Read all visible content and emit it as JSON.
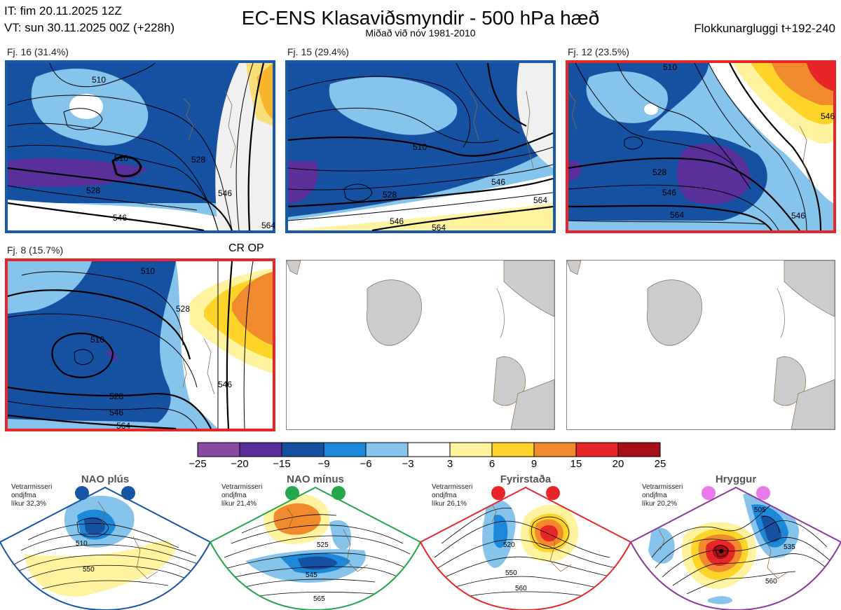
{
  "header": {
    "it": "IT: fim 20.11.2025 12Z",
    "vt": "VT: sun 30.11.2025 00Z  (+228h)",
    "title": "EC-ENS Klasaviðsmyndir - 500 hPa hæð",
    "subtitle": "Miðað við nóv 1981-2010",
    "window": "Flokkunargluggi t+192-240"
  },
  "clusters": [
    {
      "label": "Fj. 16 (31.4%)",
      "frame_color": "#1a5aa8",
      "contours": [
        "510",
        "510",
        "528",
        "528",
        "546",
        "546",
        "564"
      ]
    },
    {
      "label": "Fj. 15 (29.4%)",
      "frame_color": "#1a5aa8",
      "contours": [
        "510",
        "528",
        "546",
        "564",
        "546",
        "564"
      ]
    },
    {
      "label": "Fj. 12 (23.5%)",
      "frame_color": "#e8262a",
      "contours": [
        "510",
        "528",
        "546",
        "564",
        "546",
        "546"
      ]
    },
    {
      "label": "Fj. 8 (15.7%)",
      "frame_color": "#e8262a",
      "contours": [
        "510",
        "510",
        "528",
        "528",
        "546",
        "564",
        "546"
      ]
    }
  ],
  "cr_op": "CR OP",
  "colorbar": {
    "ticks": [
      "−25",
      "−20",
      "−15",
      "−9",
      "−6",
      "−3",
      "3",
      "6",
      "9",
      "15",
      "20",
      "25"
    ],
    "colors": [
      "#8a4aa3",
      "#5a2f9a",
      "#1650a0",
      "#1e88d8",
      "#86c4ec",
      "#ffffff",
      "#fff3a0",
      "#ffd42a",
      "#f08a2c",
      "#e8262a",
      "#a50f15"
    ]
  },
  "regimes": [
    {
      "name": "NAO plús",
      "info1": "Vetrarmisseri",
      "info2": "ondjfma",
      "info3": "líkur 32,3%",
      "color": "#1655a5",
      "contours": [
        "510",
        "550"
      ]
    },
    {
      "name": "NAO mínus",
      "info1": "Vetrarmisseri",
      "info2": "ondjfma",
      "info3": "líkur 21,4%",
      "color": "#22a84a",
      "contours": [
        "525",
        "545",
        "565"
      ]
    },
    {
      "name": "Fyrirstaða",
      "info1": "Vetrarmisseri",
      "info2": "ondjfma",
      "info3": "líkur 26,1%",
      "color": "#e8262a",
      "contours": [
        "520",
        "550",
        "560"
      ]
    },
    {
      "name": "Hryggur",
      "info1": "Vetrarmisseri",
      "info2": "ondjfma",
      "info3": "líkur 20,2%",
      "color": "#e97ae9",
      "contours": [
        "505",
        "535",
        "560"
      ]
    }
  ]
}
